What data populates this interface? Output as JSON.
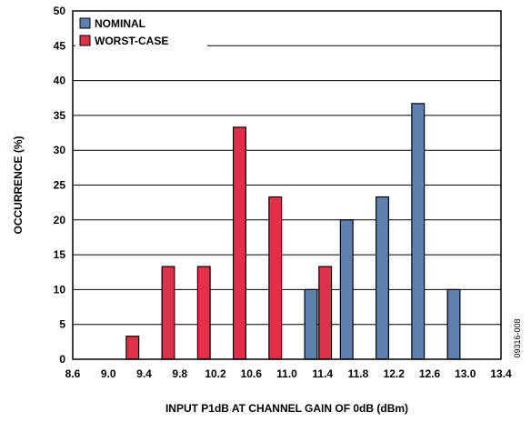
{
  "chart_data": {
    "type": "bar",
    "xlabel": "INPUT P1dB AT CHANNEL GAIN OF 0dB (dBm)",
    "ylabel": "OCCURRENCE (%)",
    "xlim": [
      8.6,
      13.4
    ],
    "ylim": [
      0,
      50
    ],
    "x_ticks": [
      "8.6",
      "9.0",
      "9.4",
      "9.8",
      "10.2",
      "10.6",
      "11.0",
      "11.4",
      "11.8",
      "12.2",
      "12.6",
      "13.0",
      "13.4"
    ],
    "y_ticks": [
      "0",
      "5",
      "10",
      "15",
      "20",
      "25",
      "30",
      "35",
      "40",
      "45",
      "50"
    ],
    "grid": "horizontal",
    "legend_position": "top-left",
    "figure_id": "09316-008",
    "series": [
      {
        "name": "NOMINAL",
        "color": "#6080b0",
        "points": [
          {
            "x": 11.27,
            "y": 10
          },
          {
            "x": 11.67,
            "y": 20
          },
          {
            "x": 12.07,
            "y": 23.3
          },
          {
            "x": 12.47,
            "y": 36.7
          },
          {
            "x": 12.87,
            "y": 10
          }
        ]
      },
      {
        "name": "WORST-CASE",
        "color": "#e0304a",
        "points": [
          {
            "x": 9.27,
            "y": 3.3
          },
          {
            "x": 9.67,
            "y": 13.3
          },
          {
            "x": 10.07,
            "y": 13.3
          },
          {
            "x": 10.47,
            "y": 33.3
          },
          {
            "x": 10.87,
            "y": 23.3
          },
          {
            "x": 11.43,
            "y": 13.3
          }
        ]
      }
    ]
  }
}
